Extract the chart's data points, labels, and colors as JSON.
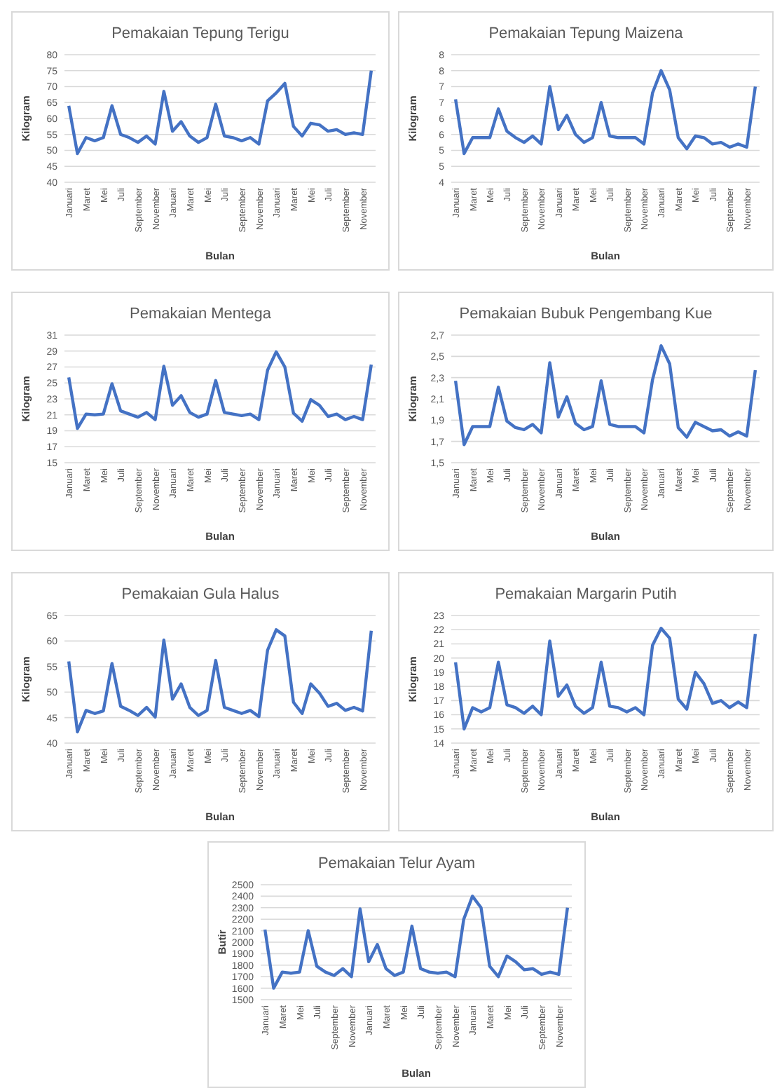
{
  "chart_data": [
    {
      "type": "line",
      "title": "Pemakaian Tepung Terigu",
      "xlabel": "Bulan",
      "ylabel": "Kilogram",
      "grid": "y",
      "categories": [
        "Januari",
        null,
        "Maret",
        null,
        "Mei",
        null,
        "Juli",
        null,
        "September",
        null,
        "November",
        null,
        "Januari",
        null,
        "Maret",
        null,
        "Mei",
        null,
        "Juli",
        null,
        "September",
        null,
        "November",
        null,
        "Januari",
        null,
        "Maret",
        null,
        "Mei",
        null,
        "Juli",
        null,
        "September",
        null,
        "November",
        null
      ],
      "ylim": [
        40,
        80
      ],
      "yticks": [
        40,
        45,
        50,
        55,
        60,
        65,
        70,
        75,
        80
      ],
      "series": [
        {
          "color": "#4472c4",
          "values": [
            64,
            49,
            54,
            53,
            54,
            64,
            55,
            54,
            52.5,
            54.5,
            52,
            68.5,
            56,
            59,
            54.5,
            52.5,
            54,
            64.5,
            54.5,
            54,
            53,
            54,
            52,
            65.5,
            68,
            71,
            57.5,
            54.5,
            58.5,
            58,
            56,
            56.5,
            55,
            55.5,
            55,
            75
          ]
        }
      ]
    },
    {
      "type": "line",
      "title": "Pemakaian Tepung Maizena",
      "xlabel": "Bulan",
      "ylabel": "Kilogram",
      "grid": "y",
      "categories": [
        "Januari",
        null,
        "Maret",
        null,
        "Mei",
        null,
        "Juli",
        null,
        "September",
        null,
        "November",
        null,
        "Januari",
        null,
        "Maret",
        null,
        "Mei",
        null,
        "Juli",
        null,
        "September",
        null,
        "November",
        null,
        "Januari",
        null,
        "Maret",
        null,
        "Mei",
        null,
        "Juli",
        null,
        "September",
        null,
        "November",
        null
      ],
      "ylim": [
        4,
        8
      ],
      "yticks": [
        4,
        {
          "value": 4.5,
          "label": "5"
        },
        5,
        {
          "value": 5.5,
          "label": "6"
        },
        6,
        {
          "value": 6.5,
          "label": "7"
        },
        7,
        {
          "value": 7.5,
          "label": "8"
        },
        8
      ],
      "series": [
        {
          "color": "#4472c4",
          "values": [
            6.6,
            4.9,
            5.4,
            5.4,
            5.4,
            6.3,
            5.6,
            5.4,
            5.25,
            5.45,
            5.2,
            7.0,
            5.65,
            6.1,
            5.5,
            5.25,
            5.4,
            6.5,
            5.45,
            5.4,
            5.4,
            5.4,
            5.2,
            6.8,
            7.5,
            6.9,
            5.4,
            5.05,
            5.45,
            5.4,
            5.2,
            5.25,
            5.1,
            5.2,
            5.1,
            7.0
          ]
        }
      ]
    },
    {
      "type": "line",
      "title": "Pemakaian Mentega",
      "xlabel": "Bulan",
      "ylabel": "Kilogram",
      "grid": "y",
      "categories": [
        "Januari",
        null,
        "Maret",
        null,
        "Mei",
        null,
        "Juli",
        null,
        "September",
        null,
        "November",
        null,
        "Januari",
        null,
        "Maret",
        null,
        "Mei",
        null,
        "Juli",
        null,
        "September",
        null,
        "November",
        null,
        "Januari",
        null,
        "Maret",
        null,
        "Mei",
        null,
        "Juli",
        null,
        "September",
        null,
        "November",
        null
      ],
      "ylim": [
        15,
        31
      ],
      "yticks": [
        15,
        17,
        19,
        21,
        23,
        25,
        27,
        29,
        31
      ],
      "series": [
        {
          "color": "#4472c4",
          "values": [
            25.7,
            19.3,
            21.1,
            21,
            21.1,
            24.9,
            21.5,
            21.1,
            20.7,
            21.3,
            20.4,
            27.1,
            22.2,
            23.4,
            21.3,
            20.7,
            21.1,
            25.3,
            21.3,
            21.1,
            20.9,
            21.1,
            20.4,
            26.6,
            28.9,
            27,
            21.2,
            20.2,
            22.9,
            22.2,
            20.8,
            21.1,
            20.4,
            20.8,
            20.4,
            27.3
          ]
        }
      ]
    },
    {
      "type": "line",
      "title": "Pemakaian Bubuk Pengembang Kue",
      "xlabel": "Bulan",
      "ylabel": "Kilogram",
      "grid": "y",
      "categories": [
        "Januari",
        null,
        "Maret",
        null,
        "Mei",
        null,
        "Juli",
        null,
        "September",
        null,
        "November",
        null,
        "Januari",
        null,
        "Maret",
        null,
        "Mei",
        null,
        "Juli",
        null,
        "September",
        null,
        "November",
        null,
        "Januari",
        null,
        "Maret",
        null,
        "Mei",
        null,
        "Juli",
        null,
        "September",
        null,
        "November",
        null
      ],
      "ylim": [
        1.5,
        2.7
      ],
      "yticks": [
        {
          "value": 1.5,
          "label": "1,5"
        },
        {
          "value": 1.7,
          "label": "1,7"
        },
        {
          "value": 1.9,
          "label": "1,9"
        },
        {
          "value": 2.1,
          "label": "2,1"
        },
        {
          "value": 2.3,
          "label": "2,3"
        },
        {
          "value": 2.5,
          "label": "2,5"
        },
        {
          "value": 2.7,
          "label": "2,7"
        }
      ],
      "series": [
        {
          "color": "#4472c4",
          "values": [
            2.27,
            1.67,
            1.84,
            1.84,
            1.84,
            2.21,
            1.89,
            1.83,
            1.81,
            1.86,
            1.78,
            2.44,
            1.93,
            2.12,
            1.87,
            1.81,
            1.84,
            2.27,
            1.86,
            1.84,
            1.84,
            1.84,
            1.78,
            2.28,
            2.6,
            2.43,
            1.83,
            1.74,
            1.88,
            1.84,
            1.8,
            1.81,
            1.75,
            1.79,
            1.75,
            2.37
          ]
        }
      ]
    },
    {
      "type": "line",
      "title": "Pemakaian Gula Halus",
      "xlabel": "Bulan",
      "ylabel": "Kilogram",
      "grid": "y",
      "categories": [
        "Januari",
        null,
        "Maret",
        null,
        "Mei",
        null,
        "Juli",
        null,
        "September",
        null,
        "November",
        null,
        "Januari",
        null,
        "Maret",
        null,
        "Mei",
        null,
        "Juli",
        null,
        "September",
        null,
        "November",
        null,
        "Januari",
        null,
        "Maret",
        null,
        "Mei",
        null,
        "Juli",
        null,
        "September",
        null,
        "November",
        null
      ],
      "ylim": [
        40,
        65
      ],
      "yticks": [
        40,
        45,
        50,
        55,
        60,
        65
      ],
      "series": [
        {
          "color": "#4472c4",
          "values": [
            56,
            42.2,
            46.4,
            45.8,
            46.3,
            55.6,
            47.2,
            46.4,
            45.4,
            47,
            45.1,
            60.2,
            48.6,
            51.6,
            47,
            45.4,
            46.4,
            56.2,
            47,
            46.4,
            45.8,
            46.4,
            45.2,
            58.2,
            62.2,
            61,
            48,
            45.8,
            51.6,
            49.8,
            47.2,
            47.8,
            46.4,
            47,
            46.3,
            62
          ]
        }
      ]
    },
    {
      "type": "line",
      "title": "Pemakaian Margarin Putih",
      "xlabel": "Bulan",
      "ylabel": "Kilogram",
      "grid": "y",
      "categories": [
        "Januari",
        null,
        "Maret",
        null,
        "Mei",
        null,
        "Juli",
        null,
        "September",
        null,
        "November",
        null,
        "Januari",
        null,
        "Maret",
        null,
        "Mei",
        null,
        "Juli",
        null,
        "September",
        null,
        "November",
        null,
        "Januari",
        null,
        "Maret",
        null,
        "Mei",
        null,
        "Juli",
        null,
        "September",
        null,
        "November",
        null
      ],
      "ylim": [
        14,
        23
      ],
      "yticks": [
        14,
        15,
        16,
        17,
        18,
        19,
        20,
        21,
        22,
        23
      ],
      "series": [
        {
          "color": "#4472c4",
          "values": [
            19.7,
            15,
            16.5,
            16.2,
            16.5,
            19.7,
            16.7,
            16.5,
            16.1,
            16.6,
            16,
            21.2,
            17.3,
            18.1,
            16.6,
            16.1,
            16.5,
            19.7,
            16.6,
            16.5,
            16.2,
            16.5,
            16,
            20.9,
            22.1,
            21.4,
            17.1,
            16.4,
            19,
            18.2,
            16.8,
            17,
            16.5,
            16.9,
            16.5,
            21.7
          ]
        }
      ]
    },
    {
      "type": "line",
      "title": "Pemakaian Telur Ayam",
      "xlabel": "Bulan",
      "ylabel": "Butir",
      "grid": "y",
      "categories": [
        "Januari",
        null,
        "Maret",
        null,
        "Mei",
        null,
        "Juli",
        null,
        "September",
        null,
        "November",
        null,
        "Januari",
        null,
        "Maret",
        null,
        "Mei",
        null,
        "Juli",
        null,
        "September",
        null,
        "November",
        null,
        "Januari",
        null,
        "Maret",
        null,
        "Mei",
        null,
        "Juli",
        null,
        "September",
        null,
        "November",
        null
      ],
      "ylim": [
        1500,
        2500
      ],
      "yticks": [
        1500,
        1600,
        1700,
        1800,
        1900,
        2000,
        2100,
        2200,
        2300,
        2400,
        2500
      ],
      "series": [
        {
          "color": "#4472c4",
          "values": [
            2110,
            1600,
            1740,
            1730,
            1740,
            2100,
            1790,
            1740,
            1710,
            1770,
            1700,
            2290,
            1830,
            1980,
            1770,
            1710,
            1740,
            2140,
            1770,
            1740,
            1730,
            1740,
            1700,
            2200,
            2400,
            2300,
            1790,
            1700,
            1880,
            1830,
            1760,
            1770,
            1720,
            1740,
            1720,
            2300
          ]
        }
      ]
    }
  ]
}
